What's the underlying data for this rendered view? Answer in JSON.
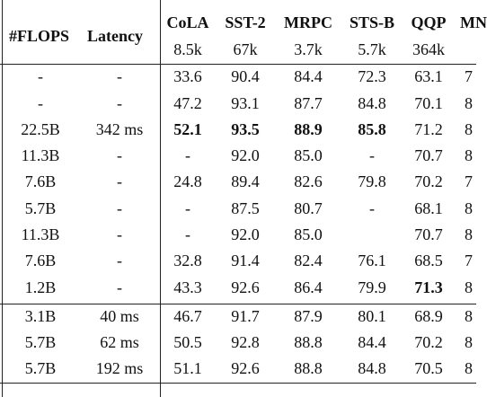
{
  "header": {
    "flops": "#FLOPS",
    "latency": "Latency",
    "tasks": [
      {
        "name": "CoLA",
        "size": "8.5k"
      },
      {
        "name": "SST-2",
        "size": "67k"
      },
      {
        "name": "MRPC",
        "size": "3.7k"
      },
      {
        "name": "STS-B",
        "size": "5.7k"
      },
      {
        "name": "QQP",
        "size": "364k"
      },
      {
        "name": "MN",
        "size": ""
      }
    ]
  },
  "rows": [
    {
      "flops": "-",
      "latency": "-",
      "vals": [
        "33.6",
        "90.4",
        "84.4",
        "72.3",
        "63.1",
        "7"
      ],
      "bold": []
    },
    {
      "flops": "-",
      "latency": "-",
      "vals": [
        "47.2",
        "93.1",
        "87.7",
        "84.8",
        "70.1",
        "8"
      ],
      "bold": []
    },
    {
      "flops": "22.5B",
      "latency": "342 ms",
      "vals": [
        "52.1",
        "93.5",
        "88.9",
        "85.8",
        "71.2",
        "8"
      ],
      "bold": [
        0,
        1,
        2,
        3
      ]
    },
    {
      "flops": "11.3B",
      "latency": "-",
      "vals": [
        "-",
        "92.0",
        "85.0",
        "-",
        "70.7",
        "8"
      ],
      "bold": []
    },
    {
      "flops": "7.6B",
      "latency": "-",
      "vals": [
        "24.8",
        "89.4",
        "82.6",
        "79.8",
        "70.2",
        "7"
      ],
      "bold": []
    },
    {
      "flops": "5.7B",
      "latency": "-",
      "vals": [
        "-",
        "87.5",
        "80.7",
        "-",
        "68.1",
        "8"
      ],
      "bold": []
    },
    {
      "flops": "11.3B",
      "latency": "-",
      "vals": [
        "-",
        "92.0",
        "85.0",
        "",
        "70.7",
        "8"
      ],
      "bold": []
    },
    {
      "flops": "7.6B",
      "latency": "-",
      "vals": [
        "32.8",
        "91.4",
        "82.4",
        "76.1",
        "68.5",
        "7"
      ],
      "bold": []
    },
    {
      "flops": "1.2B",
      "latency": "-",
      "vals": [
        "43.3",
        "92.6",
        "86.4",
        "79.9",
        "71.3",
        "8"
      ],
      "bold": [
        4
      ]
    },
    {
      "flops": "3.1B",
      "latency": "40 ms",
      "vals": [
        "46.7",
        "91.7",
        "87.9",
        "80.1",
        "68.9",
        "8"
      ],
      "bold": []
    },
    {
      "flops": "5.7B",
      "latency": "62 ms",
      "vals": [
        "50.5",
        "92.8",
        "88.8",
        "84.4",
        "70.2",
        "8"
      ],
      "bold": []
    },
    {
      "flops": "5.7B",
      "latency": "192 ms",
      "vals": [
        "51.1",
        "92.6",
        "88.8",
        "84.8",
        "70.5",
        "8"
      ],
      "bold": []
    }
  ]
}
